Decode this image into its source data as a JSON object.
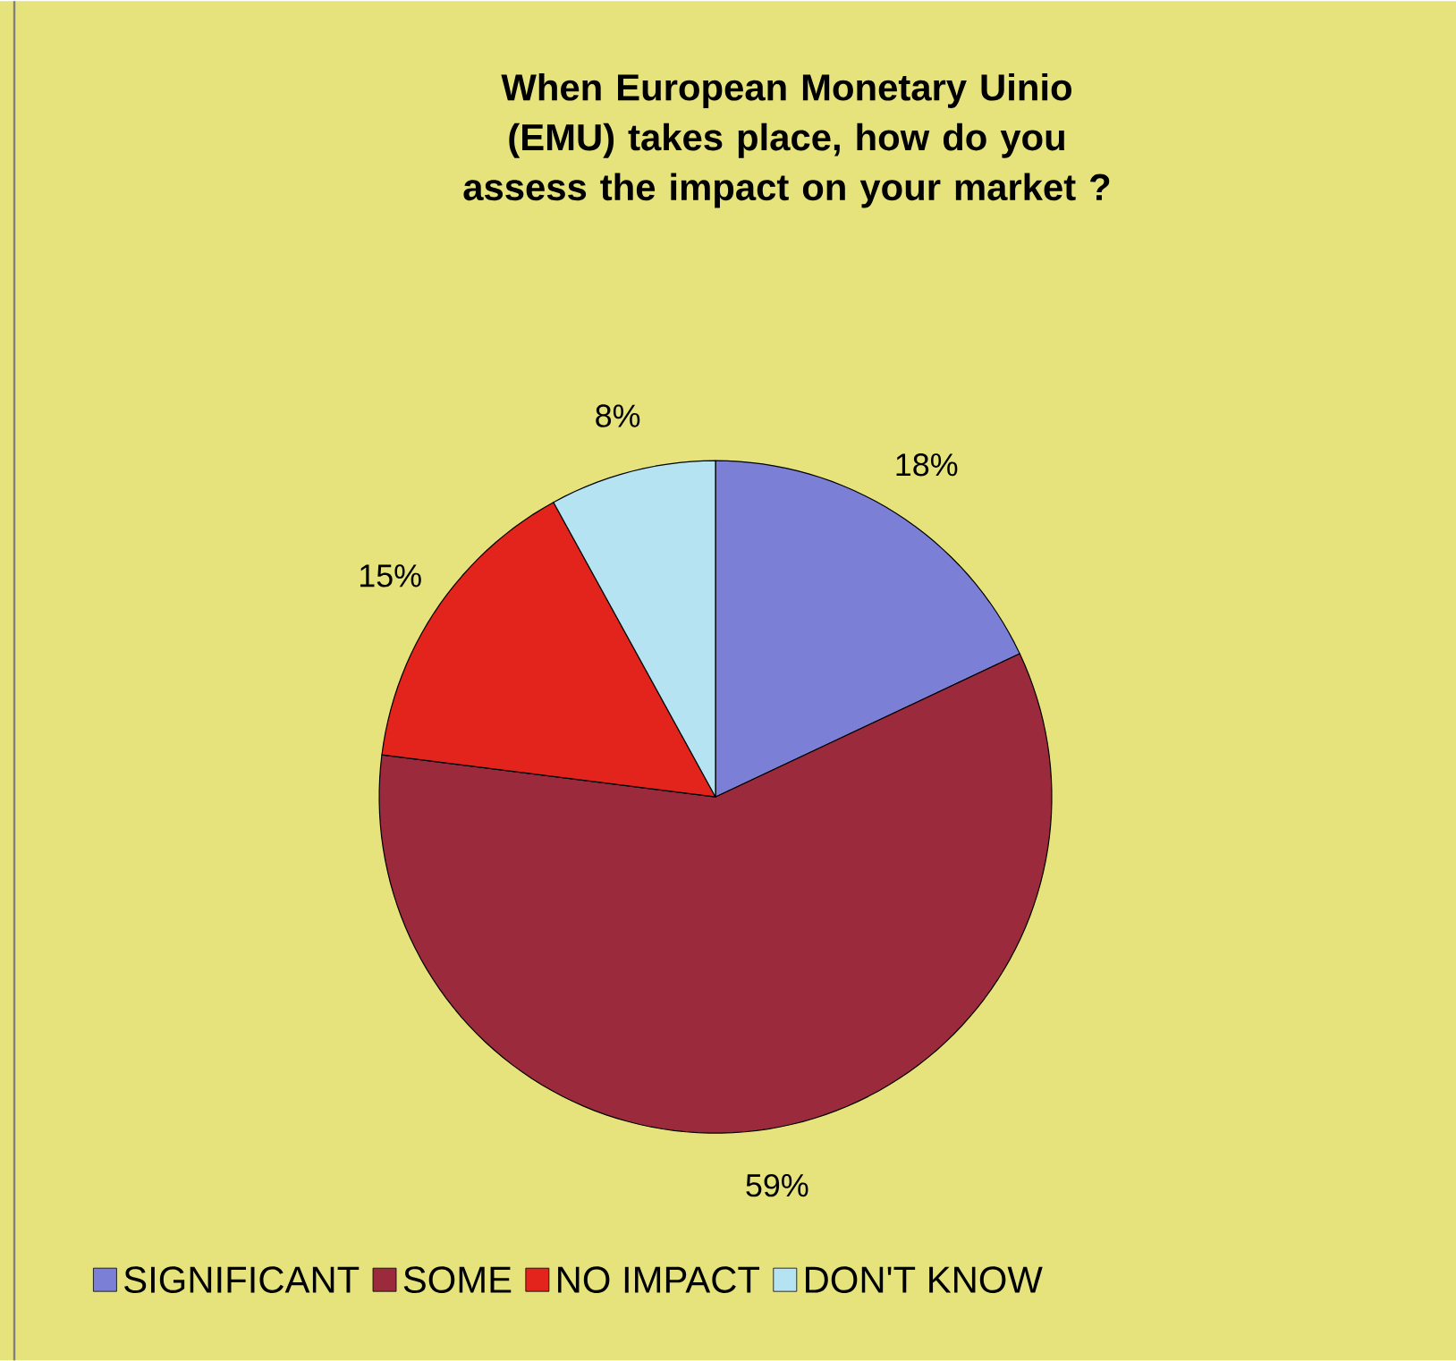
{
  "chart_data": {
    "type": "pie",
    "title": "When European Monetary Uinio (EMU) takes place, how do you assess the impact on your market ?",
    "categories": [
      "SIGNIFICANT",
      "SOME",
      "NO IMPACT",
      "DON'T KNOW"
    ],
    "values": [
      18,
      59,
      15,
      8
    ],
    "value_labels": [
      "18%",
      "59%",
      "15%",
      "8%"
    ],
    "colors": [
      "#7b7fd6",
      "#9a2a3c",
      "#e2241c",
      "#b5e3f2"
    ],
    "legend": "bottom"
  }
}
